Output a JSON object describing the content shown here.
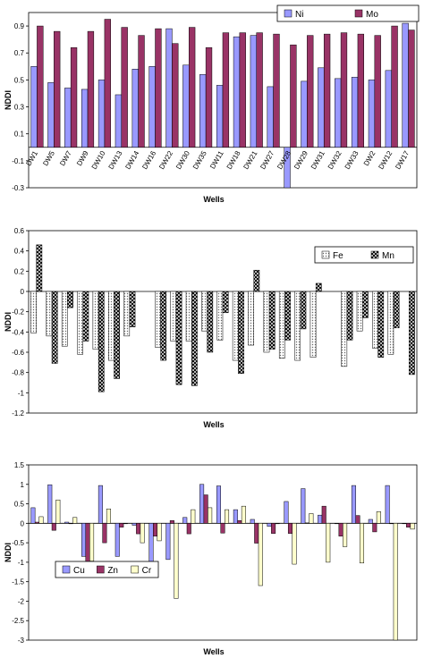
{
  "charts": [
    {
      "type": "bar",
      "xlabel": "Wells",
      "ylabel": "NDDI",
      "ylim": [
        -0.3,
        1.0
      ],
      "yticks": [
        -0.3,
        -0.1,
        0.1,
        0.3,
        0.5,
        0.7,
        0.9
      ],
      "categories": [
        "DW1",
        "DW5",
        "DW7",
        "DW9",
        "DW10",
        "DW13",
        "DW14",
        "DW16",
        "DW22",
        "DW30",
        "DW35",
        "DW11",
        "DW18",
        "DW21",
        "DW27",
        "DW28",
        "DW29",
        "DW31",
        "DW32",
        "DW33",
        "DW2",
        "DW12",
        "DW17"
      ],
      "series": [
        {
          "name": "Ni",
          "color": "#9999ff",
          "values": [
            0.6,
            0.48,
            0.44,
            0.43,
            0.5,
            0.39,
            0.58,
            0.6,
            0.88,
            0.61,
            0.54,
            0.46,
            0.82,
            0.83,
            0.45,
            -0.3,
            0.49,
            0.59,
            0.51,
            0.52,
            0.5,
            0.57,
            0.92
          ]
        },
        {
          "name": "Mo",
          "color": "#993366",
          "values": [
            0.9,
            0.86,
            0.74,
            0.86,
            0.95,
            0.89,
            0.83,
            0.88,
            0.77,
            0.89,
            0.74,
            0.85,
            0.85,
            0.85,
            0.84,
            0.76,
            0.83,
            0.84,
            0.85,
            0.84,
            0.83,
            0.9,
            0.87
          ]
        }
      ],
      "legend": "top-right"
    },
    {
      "type": "bar",
      "xlabel": "Wells",
      "ylabel": "NDDI",
      "ylim": [
        -1.2,
        0.6
      ],
      "yticks": [
        -1.2,
        -1,
        -0.8,
        -0.6,
        -0.4,
        -0.2,
        0,
        0.2,
        0.4,
        0.6
      ],
      "categories": [
        "",
        "",
        "",
        "",
        "",
        "",
        "",
        "",
        "",
        "",
        "",
        "",
        "",
        "",
        "",
        "",
        "",
        "",
        "",
        "",
        "",
        "",
        "",
        "",
        ""
      ],
      "series": [
        {
          "name": "Fe",
          "color": "#dddddd",
          "pattern": "dots",
          "values": [
            -0.41,
            -0.44,
            -0.54,
            -0.62,
            -0.57,
            -0.68,
            -0.44,
            null,
            -0.55,
            -0.49,
            -0.49,
            -0.39,
            -0.48,
            -0.68,
            -0.53,
            -0.6,
            -0.66,
            -0.68,
            -0.65,
            null,
            -0.74,
            -0.39,
            -0.56,
            -0.62,
            null
          ]
        },
        {
          "name": "Mn",
          "color": "#333333",
          "pattern": "cross",
          "values": [
            0.46,
            -0.71,
            -0.16,
            -0.49,
            -0.99,
            -0.86,
            -0.35,
            null,
            -0.68,
            -0.92,
            -0.93,
            -0.6,
            -0.21,
            -0.81,
            0.21,
            -0.57,
            -0.48,
            -0.37,
            0.08,
            null,
            -0.48,
            -0.26,
            -0.65,
            -0.36,
            -0.82
          ]
        }
      ],
      "legend": "top-right"
    },
    {
      "type": "bar",
      "xlabel": "Wells",
      "ylabel": "NDDI",
      "ylim": [
        -3.0,
        1.5
      ],
      "yticks": [
        -3,
        -2.5,
        -2,
        -1.5,
        -1,
        -0.5,
        0,
        0.5,
        1,
        1.5
      ],
      "categories": [
        "",
        "",
        "",
        "",
        "",
        "",
        "",
        "",
        "",
        "",
        "",
        "",
        "",
        "",
        "",
        "",
        "",
        "",
        "",
        "",
        "",
        "",
        ""
      ],
      "series": [
        {
          "name": "Cu",
          "color": "#9999ff",
          "values": [
            0.4,
            0.99,
            0.03,
            -0.85,
            0.97,
            -0.85,
            -0.05,
            -0.98,
            -0.93,
            0.15,
            1.0,
            0.96,
            0.35,
            0.1,
            -0.08,
            0.56,
            0.89,
            0.21,
            0.0,
            0.97,
            0.1,
            0.97,
            0.0
          ]
        },
        {
          "name": "Zn",
          "color": "#993366",
          "values": [
            0.03,
            -0.18,
            0.0,
            -0.98,
            -0.5,
            -0.1,
            -0.27,
            -0.33,
            0.07,
            -0.27,
            0.73,
            -0.25,
            0.07,
            -0.51,
            -0.26,
            -0.26,
            0.01,
            0.44,
            -0.33,
            0.2,
            -0.22,
            0.0,
            -0.1
          ]
        },
        {
          "name": "Cr",
          "color": "#ffffcc",
          "values": [
            0.17,
            0.6,
            0.15,
            -0.97,
            0.37,
            0.0,
            -0.5,
            -0.45,
            -1.93,
            0.35,
            0.4,
            0.35,
            0.44,
            -1.6,
            0.0,
            -1.05,
            0.25,
            -1.0,
            -0.6,
            -1.02,
            0.3,
            -3.0,
            -0.15
          ]
        }
      ],
      "legend": "bottom-left"
    }
  ]
}
